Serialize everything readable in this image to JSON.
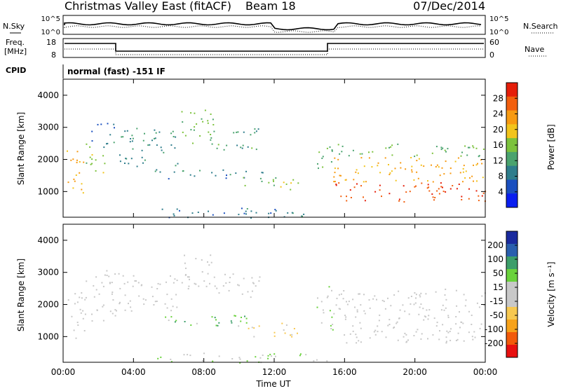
{
  "header": {
    "station": "Christmas Valley East (fitACF)",
    "beam": "Beam 18",
    "date": "07/Dec/2014"
  },
  "noise_panel": {
    "left_label": "N.Sky",
    "left_ticks": [
      "10^5",
      "10^0"
    ],
    "right_label": "N.Search",
    "right_ticks": [
      "10^5",
      "10^0"
    ]
  },
  "freq_panel": {
    "left_label_1": "Freq.",
    "left_label_2": "[MHz]",
    "left_ticks": [
      "18",
      "8"
    ],
    "right_label": "Nave",
    "right_ticks": [
      "60",
      "0"
    ]
  },
  "cpid": {
    "label": "CPID",
    "value": "normal (fast) -151 IF"
  },
  "colors": {
    "power_scale": [
      "#0a1ef0",
      "#1a4fbf",
      "#2e7d8c",
      "#4aa36e",
      "#7cc23c",
      "#f2c41c",
      "#f79a12",
      "#f25f0e",
      "#e51e0a"
    ],
    "velocity_scale": [
      "#e81010",
      "#f25a0a",
      "#f7a21a",
      "#f7c850",
      "#c8c8c8",
      "#c8c8c8",
      "#6ad23c",
      "#3c9e6a",
      "#2a5fae",
      "#1a2a9e"
    ]
  },
  "chart_data": [
    {
      "type": "heatmap",
      "name_ref": "power",
      "ylabel": "Slant Range [km]",
      "xlabel": "",
      "x_ticks": [
        "00:00",
        "04:00",
        "08:00",
        "12:00",
        "16:00",
        "20:00",
        "00:00"
      ],
      "y_ticks": [
        "1000",
        "2000",
        "3000",
        "4000"
      ],
      "xlim": [
        0,
        24
      ],
      "ylim": [
        200,
        4500
      ],
      "colorbar": {
        "label": "Power [dB]",
        "ticks": [
          "28",
          "24",
          "20",
          "16",
          "12",
          "8",
          "4"
        ],
        "range": [
          0,
          32
        ]
      },
      "features": [
        {
          "t0": 0.2,
          "t1": 1.2,
          "r0": 900,
          "r1": 2400,
          "v": 22
        },
        {
          "t0": 1.2,
          "t1": 2.4,
          "r0": 1500,
          "r1": 2500,
          "v": 16
        },
        {
          "t0": 1.6,
          "t1": 3.0,
          "r0": 2400,
          "r1": 3200,
          "v": 8
        },
        {
          "t0": 3.1,
          "t1": 6.5,
          "r0": 1800,
          "r1": 3000,
          "v": 10
        },
        {
          "t0": 6.5,
          "t1": 8.6,
          "r0": 2500,
          "r1": 3600,
          "v": 14
        },
        {
          "t0": 8.6,
          "t1": 11.2,
          "r0": 2300,
          "r1": 3000,
          "v": 12
        },
        {
          "t0": 5.2,
          "t1": 11.5,
          "r0": 1400,
          "r1": 1700,
          "v": 9
        },
        {
          "t0": 9.8,
          "t1": 12.4,
          "r0": 1200,
          "r1": 1500,
          "v": 14
        },
        {
          "t0": 12.2,
          "t1": 13.4,
          "r0": 1000,
          "r1": 1500,
          "v": 18
        },
        {
          "t0": 14.3,
          "t1": 15.4,
          "r0": 1700,
          "r1": 2600,
          "v": 14
        },
        {
          "t0": 15.3,
          "t1": 24.0,
          "r0": 700,
          "r1": 1300,
          "v": 28
        },
        {
          "t0": 15.3,
          "t1": 24.0,
          "r0": 1300,
          "r1": 2100,
          "v": 22
        },
        {
          "t0": 15.5,
          "t1": 24.0,
          "r0": 2100,
          "r1": 2500,
          "v": 14
        },
        {
          "t0": 5.0,
          "t1": 15.0,
          "r0": 200,
          "r1": 500,
          "v": 8
        }
      ]
    },
    {
      "type": "heatmap",
      "name_ref": "velocity",
      "ylabel": "Slant Range [km]",
      "xlabel": "Time UT",
      "x_ticks": [
        "00:00",
        "04:00",
        "08:00",
        "12:00",
        "16:00",
        "20:00",
        "00:00"
      ],
      "y_ticks": [
        "1000",
        "2000",
        "3000",
        "4000"
      ],
      "xlim": [
        0,
        24
      ],
      "ylim": [
        200,
        4500
      ],
      "colorbar": {
        "label": "Velocity [m s⁻¹]",
        "ticks": [
          "200",
          "100",
          "50",
          "15",
          "-15",
          "-50",
          "-100",
          "-200"
        ],
        "range": [
          -250,
          250
        ]
      },
      "features": [
        {
          "t0": 0.2,
          "t1": 1.2,
          "r0": 900,
          "r1": 2400,
          "v": 0
        },
        {
          "t0": 1.2,
          "t1": 3.0,
          "r0": 1500,
          "r1": 3200,
          "v": 0
        },
        {
          "t0": 3.1,
          "t1": 6.5,
          "r0": 1800,
          "r1": 3000,
          "v": 0
        },
        {
          "t0": 6.5,
          "t1": 8.6,
          "r0": 2500,
          "r1": 3600,
          "v": 0
        },
        {
          "t0": 8.6,
          "t1": 11.2,
          "r0": 2200,
          "r1": 3000,
          "v": 0
        },
        {
          "t0": 5.2,
          "t1": 10.5,
          "r0": 1300,
          "r1": 1700,
          "v": 80
        },
        {
          "t0": 10.5,
          "t1": 13.4,
          "r0": 1000,
          "r1": 1500,
          "v": -80
        },
        {
          "t0": 14.3,
          "t1": 15.4,
          "r0": 1200,
          "r1": 2600,
          "v": 40
        },
        {
          "t0": 15.3,
          "t1": 24.0,
          "r0": 800,
          "r1": 2100,
          "v": 0
        },
        {
          "t0": 15.5,
          "t1": 24.0,
          "r0": 2100,
          "r1": 2500,
          "v": -10
        },
        {
          "t0": 5.0,
          "t1": 15.0,
          "r0": 200,
          "r1": 500,
          "v": 30
        }
      ]
    }
  ]
}
